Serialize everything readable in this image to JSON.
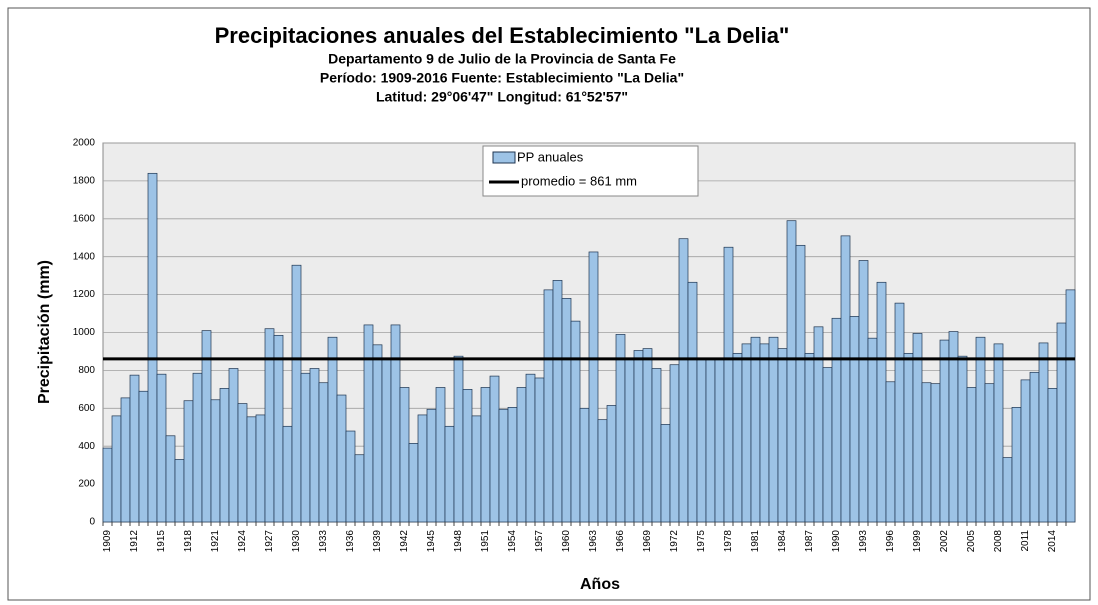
{
  "chart_data": {
    "type": "bar",
    "title": "Precipitaciones anuales del Establecimiento \"La Delia\"",
    "subtitle": [
      "Departamento 9 de Julio de la Provincia de Santa Fe",
      "Período: 1909-2016   Fuente: Establecimiento \"La Delia\"",
      "Latitud: 29°06'47\"    Longitud: 61°52'57\""
    ],
    "x_label": "Años",
    "y_label": "Precipitación (mm)",
    "categories": [
      "1909",
      null,
      null,
      "1912",
      null,
      null,
      "1915",
      null,
      null,
      "1918",
      null,
      null,
      "1921",
      null,
      null,
      "1924",
      null,
      null,
      "1927",
      null,
      null,
      "1930",
      null,
      null,
      "1933",
      null,
      null,
      "1936",
      null,
      null,
      "1939",
      null,
      null,
      "1942",
      null,
      null,
      "1945",
      null,
      null,
      "1948",
      null,
      null,
      "1951",
      null,
      null,
      "1954",
      null,
      null,
      "1957",
      null,
      null,
      "1960",
      null,
      null,
      "1963",
      null,
      null,
      "1966",
      null,
      null,
      "1969",
      null,
      null,
      "1972",
      null,
      null,
      "1975",
      null,
      null,
      "1978",
      null,
      null,
      "1981",
      null,
      null,
      "1984",
      null,
      null,
      "1987",
      null,
      null,
      "1990",
      null,
      null,
      "1993",
      null,
      null,
      "1996",
      null,
      null,
      "1999",
      null,
      null,
      "2002",
      null,
      null,
      "2005",
      null,
      null,
      "2008",
      null,
      null,
      "2011",
      null,
      null,
      "2014",
      null,
      null
    ],
    "series": [
      {
        "name": "PP anuales",
        "color": "#9dc3e6",
        "values": [
          390,
          560,
          655,
          775,
          690,
          1840,
          780,
          455,
          330,
          640,
          785,
          1010,
          645,
          705,
          810,
          625,
          555,
          565,
          1020,
          985,
          505,
          1355,
          785,
          810,
          735,
          975,
          670,
          480,
          355,
          1040,
          935,
          860,
          1040,
          710,
          415,
          565,
          595,
          710,
          505,
          875,
          700,
          560,
          710,
          770,
          595,
          605,
          710,
          780,
          760,
          1225,
          1275,
          1180,
          1060,
          600,
          1425,
          540,
          615,
          990,
          860,
          905,
          915,
          810,
          515,
          830,
          1495,
          1265,
          860,
          860,
          860,
          1450,
          890,
          940,
          975,
          940,
          975,
          915,
          1590,
          1460,
          890,
          1030,
          815,
          1075,
          1510,
          1085,
          1380,
          970,
          1265,
          740,
          1155,
          890,
          995,
          735,
          730,
          960,
          1005,
          875,
          710,
          975,
          730,
          940,
          340,
          605,
          750,
          790,
          945,
          705,
          1050,
          1225
        ]
      }
    ],
    "mean": 861,
    "mean_label": "promedio = 861 mm",
    "mean_color": "#000000",
    "ylim": [
      0,
      2000
    ],
    "yticks": [
      0,
      200,
      400,
      600,
      800,
      1000,
      1200,
      1400,
      1600,
      1800,
      2000
    ],
    "grid": true,
    "legend": "top"
  }
}
